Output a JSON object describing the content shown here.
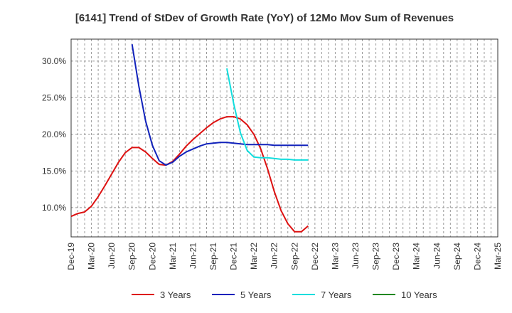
{
  "chart_data": {
    "type": "line",
    "title": "[6141]  Trend of StDev of Growth Rate (YoY) of 12Mo Mov Sum of Revenues",
    "xlabel": "",
    "ylabel": "",
    "x_ticks": [
      "Dec-19",
      "Mar-20",
      "Jun-20",
      "Sep-20",
      "Dec-20",
      "Mar-21",
      "Jun-21",
      "Sep-21",
      "Dec-21",
      "Mar-22",
      "Jun-22",
      "Sep-22",
      "Dec-22",
      "Mar-23",
      "Jun-23",
      "Sep-23",
      "Dec-23",
      "Mar-24",
      "Jun-24",
      "Sep-24",
      "Dec-24",
      "Mar-25"
    ],
    "y_ticks": [
      10.0,
      15.0,
      20.0,
      25.0,
      30.0
    ],
    "y_tick_labels": [
      "10.0%",
      "15.0%",
      "20.0%",
      "25.0%",
      "30.0%"
    ],
    "ylim": [
      6.0,
      33.0
    ],
    "grid": true,
    "legend_position": "bottom",
    "series": [
      {
        "name": "3 Years",
        "color": "#dd1111",
        "points": [
          [
            0,
            8.8
          ],
          [
            1,
            9.2
          ],
          [
            2,
            9.4
          ],
          [
            3,
            10.2
          ],
          [
            4,
            11.5
          ],
          [
            5,
            13.0
          ],
          [
            6,
            14.6
          ],
          [
            7,
            16.2
          ],
          [
            8,
            17.5
          ],
          [
            9,
            18.2
          ],
          [
            10,
            18.2
          ],
          [
            11,
            17.6
          ],
          [
            12,
            16.7
          ],
          [
            13,
            15.9
          ],
          [
            14,
            15.8
          ],
          [
            15,
            16.3
          ],
          [
            16,
            17.3
          ],
          [
            17,
            18.4
          ],
          [
            18,
            19.3
          ],
          [
            19,
            20.1
          ],
          [
            20,
            20.9
          ],
          [
            21,
            21.6
          ],
          [
            22,
            22.1
          ],
          [
            23,
            22.4
          ],
          [
            24,
            22.4
          ],
          [
            25,
            22.1
          ],
          [
            26,
            21.3
          ],
          [
            27,
            20.0
          ],
          [
            28,
            18.0
          ],
          [
            29,
            15.3
          ],
          [
            30,
            12.2
          ],
          [
            31,
            9.6
          ],
          [
            32,
            7.8
          ],
          [
            33,
            6.7
          ],
          [
            34,
            6.7
          ],
          [
            35,
            7.5
          ]
        ]
      },
      {
        "name": "5 Years",
        "color": "#1122bb",
        "points": [
          [
            9,
            32.3
          ],
          [
            10,
            26.6
          ],
          [
            11,
            21.8
          ],
          [
            12,
            18.5
          ],
          [
            13,
            16.4
          ],
          [
            14,
            15.8
          ],
          [
            15,
            16.2
          ],
          [
            16,
            17.0
          ],
          [
            17,
            17.6
          ],
          [
            18,
            18.0
          ],
          [
            19,
            18.4
          ],
          [
            20,
            18.7
          ],
          [
            21,
            18.8
          ],
          [
            22,
            18.9
          ],
          [
            23,
            18.9
          ],
          [
            24,
            18.8
          ],
          [
            25,
            18.7
          ],
          [
            26,
            18.6
          ],
          [
            27,
            18.6
          ],
          [
            28,
            18.6
          ],
          [
            29,
            18.6
          ],
          [
            30,
            18.5
          ],
          [
            31,
            18.5
          ],
          [
            32,
            18.5
          ],
          [
            33,
            18.5
          ],
          [
            34,
            18.5
          ],
          [
            35,
            18.5
          ]
        ]
      },
      {
        "name": "7 Years",
        "color": "#11dddd",
        "points": [
          [
            23,
            29.0
          ],
          [
            24,
            24.2
          ],
          [
            25,
            20.2
          ],
          [
            26,
            17.8
          ],
          [
            27,
            16.9
          ],
          [
            28,
            16.8
          ],
          [
            29,
            16.8
          ],
          [
            30,
            16.7
          ],
          [
            31,
            16.6
          ],
          [
            32,
            16.6
          ],
          [
            33,
            16.5
          ],
          [
            34,
            16.5
          ],
          [
            35,
            16.5
          ]
        ]
      },
      {
        "name": "10 Years",
        "color": "#228822",
        "points": []
      }
    ]
  }
}
